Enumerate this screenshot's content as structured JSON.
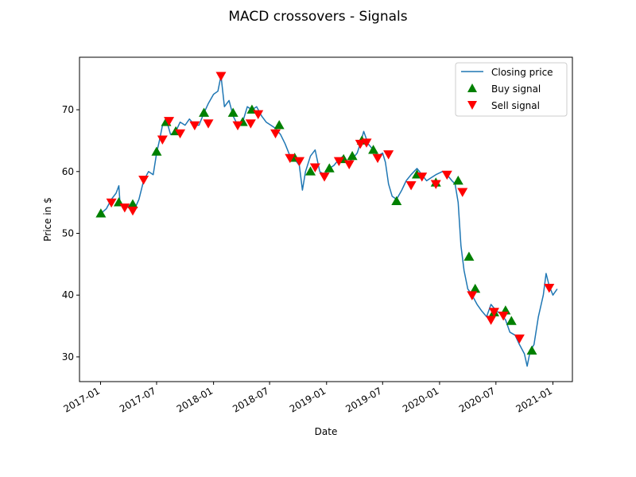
{
  "chart_data": {
    "type": "line",
    "title": "MACD crossovers - Signals",
    "xlabel": "Date",
    "ylabel": "Price in $",
    "xlim": [
      "2016-10-25",
      "2021-03-05"
    ],
    "ylim": [
      26.0,
      78.5
    ],
    "x_ticks": [
      "2017-01",
      "2017-07",
      "2018-01",
      "2018-07",
      "2019-01",
      "2019-07",
      "2020-01",
      "2020-07",
      "2021-01"
    ],
    "y_ticks": [
      30,
      40,
      50,
      60,
      70
    ],
    "legend": {
      "placement": "top-right",
      "entries": [
        "Closing price",
        "Buy signal",
        "Sell signal"
      ]
    },
    "colors": {
      "line": "#1f77b4",
      "buy": "#008000",
      "sell": "#ff0000"
    },
    "series": [
      {
        "name": "Closing price",
        "points": [
          [
            "2017-01-02",
            53.2
          ],
          [
            "2017-01-20",
            54.0
          ],
          [
            "2017-02-05",
            55.5
          ],
          [
            "2017-02-20",
            56.5
          ],
          [
            "2017-03-01",
            57.7
          ],
          [
            "2017-03-05",
            54.8
          ],
          [
            "2017-03-20",
            54.0
          ],
          [
            "2017-04-05",
            54.5
          ],
          [
            "2017-04-20",
            53.8
          ],
          [
            "2017-05-05",
            55.5
          ],
          [
            "2017-05-20",
            58.5
          ],
          [
            "2017-06-05",
            60.0
          ],
          [
            "2017-06-20",
            59.5
          ],
          [
            "2017-07-01",
            63.0
          ],
          [
            "2017-07-10",
            65.0
          ],
          [
            "2017-07-20",
            67.5
          ],
          [
            "2017-08-01",
            68.5
          ],
          [
            "2017-08-15",
            66.0
          ],
          [
            "2017-09-01",
            66.5
          ],
          [
            "2017-09-15",
            68.0
          ],
          [
            "2017-10-01",
            67.5
          ],
          [
            "2017-10-15",
            68.5
          ],
          [
            "2017-11-01",
            67.5
          ],
          [
            "2017-11-15",
            67.5
          ],
          [
            "2017-12-01",
            69.5
          ],
          [
            "2017-12-15",
            71.0
          ],
          [
            "2018-01-01",
            72.5
          ],
          [
            "2018-01-15",
            73.0
          ],
          [
            "2018-01-25",
            75.5
          ],
          [
            "2018-02-05",
            70.5
          ],
          [
            "2018-02-20",
            71.5
          ],
          [
            "2018-03-05",
            69.0
          ],
          [
            "2018-03-20",
            67.5
          ],
          [
            "2018-04-05",
            68.0
          ],
          [
            "2018-04-20",
            70.5
          ],
          [
            "2018-05-05",
            70.0
          ],
          [
            "2018-05-20",
            70.5
          ],
          [
            "2018-06-05",
            69.0
          ],
          [
            "2018-06-20",
            68.0
          ],
          [
            "2018-07-05",
            67.5
          ],
          [
            "2018-07-20",
            67.0
          ],
          [
            "2018-08-05",
            66.0
          ],
          [
            "2018-08-20",
            64.5
          ],
          [
            "2018-09-05",
            62.5
          ],
          [
            "2018-09-20",
            62.0
          ],
          [
            "2018-10-05",
            61.0
          ],
          [
            "2018-10-15",
            57.0
          ],
          [
            "2018-10-25",
            60.0
          ],
          [
            "2018-11-10",
            62.5
          ],
          [
            "2018-11-25",
            63.5
          ],
          [
            "2018-12-10",
            60.0
          ],
          [
            "2018-12-25",
            59.5
          ],
          [
            "2019-01-10",
            60.5
          ],
          [
            "2019-01-25",
            61.0
          ],
          [
            "2019-02-10",
            62.0
          ],
          [
            "2019-02-25",
            62.5
          ],
          [
            "2019-03-10",
            61.5
          ],
          [
            "2019-03-25",
            62.0
          ],
          [
            "2019-04-10",
            63.0
          ],
          [
            "2019-04-20",
            64.5
          ],
          [
            "2019-05-01",
            66.5
          ],
          [
            "2019-05-15",
            64.5
          ],
          [
            "2019-06-01",
            63.5
          ],
          [
            "2019-06-15",
            62.5
          ],
          [
            "2019-07-01",
            63.0
          ],
          [
            "2019-07-10",
            61.5
          ],
          [
            "2019-07-20",
            58.0
          ],
          [
            "2019-08-01",
            56.0
          ],
          [
            "2019-08-15",
            55.5
          ],
          [
            "2019-09-01",
            57.0
          ],
          [
            "2019-09-15",
            58.5
          ],
          [
            "2019-10-01",
            59.5
          ],
          [
            "2019-10-20",
            60.5
          ],
          [
            "2019-11-05",
            59.5
          ],
          [
            "2019-11-20",
            58.5
          ],
          [
            "2019-12-05",
            59.0
          ],
          [
            "2019-12-20",
            59.5
          ],
          [
            "2020-01-10",
            60.0
          ],
          [
            "2020-01-25",
            59.5
          ],
          [
            "2020-02-10",
            58.5
          ],
          [
            "2020-02-20",
            58.0
          ],
          [
            "2020-03-01",
            55.0
          ],
          [
            "2020-03-10",
            48.0
          ],
          [
            "2020-03-20",
            44.0
          ],
          [
            "2020-04-01",
            41.0
          ],
          [
            "2020-04-15",
            40.0
          ],
          [
            "2020-05-01",
            38.5
          ],
          [
            "2020-05-15",
            37.5
          ],
          [
            "2020-06-01",
            36.5
          ],
          [
            "2020-06-15",
            38.5
          ],
          [
            "2020-07-01",
            37.5
          ],
          [
            "2020-07-15",
            37.0
          ],
          [
            "2020-08-01",
            36.0
          ],
          [
            "2020-08-15",
            34.0
          ],
          [
            "2020-09-01",
            33.5
          ],
          [
            "2020-09-15",
            32.0
          ],
          [
            "2020-10-01",
            30.5
          ],
          [
            "2020-10-10",
            28.5
          ],
          [
            "2020-10-20",
            31.0
          ],
          [
            "2020-11-01",
            32.0
          ],
          [
            "2020-11-15",
            36.5
          ],
          [
            "2020-12-01",
            40.0
          ],
          [
            "2020-12-10",
            43.5
          ],
          [
            "2020-12-20",
            41.5
          ],
          [
            "2021-01-01",
            40.0
          ],
          [
            "2021-01-15",
            41.0
          ]
        ]
      },
      {
        "name": "Buy signal",
        "points": [
          [
            "2017-01-02",
            53.2
          ],
          [
            "2017-03-01",
            55.0
          ],
          [
            "2017-04-15",
            54.7
          ],
          [
            "2017-07-01",
            63.2
          ],
          [
            "2017-08-01",
            68.0
          ],
          [
            "2017-09-01",
            66.5
          ],
          [
            "2017-12-01",
            69.5
          ],
          [
            "2018-03-05",
            69.5
          ],
          [
            "2018-04-05",
            68.0
          ],
          [
            "2018-05-05",
            70.0
          ],
          [
            "2018-08-01",
            67.5
          ],
          [
            "2018-09-20",
            62.2
          ],
          [
            "2018-11-10",
            60.0
          ],
          [
            "2019-01-10",
            60.5
          ],
          [
            "2019-02-25",
            62.0
          ],
          [
            "2019-03-25",
            62.5
          ],
          [
            "2019-04-25",
            65.0
          ],
          [
            "2019-06-01",
            63.5
          ],
          [
            "2019-08-15",
            55.2
          ],
          [
            "2019-10-20",
            59.5
          ],
          [
            "2019-12-20",
            58.2
          ],
          [
            "2020-03-01",
            58.5
          ],
          [
            "2020-04-05",
            46.2
          ],
          [
            "2020-04-25",
            41.0
          ],
          [
            "2020-06-25",
            37.2
          ],
          [
            "2020-08-01",
            37.5
          ],
          [
            "2020-08-20",
            35.8
          ],
          [
            "2020-10-25",
            31.0
          ]
        ]
      },
      {
        "name": "Sell signal",
        "points": [
          [
            "2017-02-05",
            55.0
          ],
          [
            "2017-03-20",
            54.2
          ],
          [
            "2017-04-15",
            53.7
          ],
          [
            "2017-05-20",
            58.7
          ],
          [
            "2017-07-20",
            65.2
          ],
          [
            "2017-08-10",
            68.2
          ],
          [
            "2017-09-15",
            66.2
          ],
          [
            "2017-11-01",
            67.5
          ],
          [
            "2017-12-15",
            67.8
          ],
          [
            "2018-01-25",
            75.5
          ],
          [
            "2018-03-20",
            67.5
          ],
          [
            "2018-05-01",
            67.8
          ],
          [
            "2018-05-25",
            69.3
          ],
          [
            "2018-07-20",
            66.2
          ],
          [
            "2018-09-05",
            62.2
          ],
          [
            "2018-10-05",
            61.7
          ],
          [
            "2018-11-25",
            60.7
          ],
          [
            "2018-12-25",
            59.2
          ],
          [
            "2019-02-10",
            61.7
          ],
          [
            "2019-03-15",
            61.2
          ],
          [
            "2019-04-20",
            64.5
          ],
          [
            "2019-05-10",
            64.7
          ],
          [
            "2019-06-15",
            62.2
          ],
          [
            "2019-07-20",
            62.8
          ],
          [
            "2019-10-01",
            57.8
          ],
          [
            "2019-11-05",
            59.2
          ],
          [
            "2019-12-20",
            58.0
          ],
          [
            "2020-01-25",
            59.5
          ],
          [
            "2020-03-15",
            56.7
          ],
          [
            "2020-04-15",
            40.0
          ],
          [
            "2020-06-15",
            36.0
          ],
          [
            "2020-06-25",
            37.3
          ],
          [
            "2020-07-25",
            36.7
          ],
          [
            "2020-09-15",
            33.0
          ],
          [
            "2020-12-20",
            41.2
          ]
        ]
      }
    ]
  }
}
